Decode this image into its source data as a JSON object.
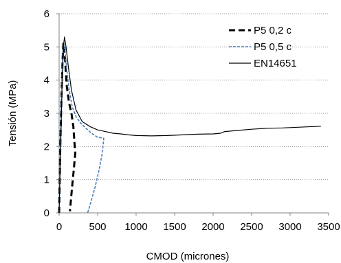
{
  "chart_data": {
    "type": "line",
    "title": "",
    "xlabel": "CMOD (micrones)",
    "ylabel": "Tensión (MPa)",
    "xlim": [
      0,
      3500
    ],
    "ylim": [
      0,
      6
    ],
    "xticks": [
      0,
      500,
      1000,
      1500,
      2000,
      2500,
      3000,
      3500
    ],
    "yticks": [
      0,
      1,
      2,
      3,
      4,
      5,
      6
    ],
    "grid": "horizontal-dotted",
    "legend_position": "top-right",
    "series": [
      {
        "name": "P5 0,2 c",
        "color": "#000000",
        "style": "dashed-bold",
        "points": [
          [
            0,
            0
          ],
          [
            15,
            2.0
          ],
          [
            30,
            3.5
          ],
          [
            45,
            4.6
          ],
          [
            55,
            5.1
          ],
          [
            65,
            5.1
          ],
          [
            80,
            4.5
          ],
          [
            100,
            3.8
          ],
          [
            130,
            3.3
          ],
          [
            160,
            3.0
          ],
          [
            185,
            2.6
          ],
          [
            200,
            2.1
          ],
          [
            210,
            1.8
          ],
          [
            190,
            1.3
          ],
          [
            165,
            0.7
          ],
          [
            140,
            0.05
          ]
        ]
      },
      {
        "name": "P5 0,5 c",
        "color": "#4a7ebb",
        "style": "dashed",
        "points": [
          [
            0,
            0
          ],
          [
            15,
            2.0
          ],
          [
            30,
            3.6
          ],
          [
            45,
            4.7
          ],
          [
            60,
            5.05
          ],
          [
            75,
            4.9
          ],
          [
            100,
            4.3
          ],
          [
            130,
            3.7
          ],
          [
            170,
            3.2
          ],
          [
            220,
            2.9
          ],
          [
            280,
            2.7
          ],
          [
            350,
            2.55
          ],
          [
            420,
            2.4
          ],
          [
            500,
            2.28
          ],
          [
            580,
            2.25
          ],
          [
            560,
            1.8
          ],
          [
            520,
            1.3
          ],
          [
            470,
            0.8
          ],
          [
            410,
            0.3
          ],
          [
            370,
            0.0
          ]
        ]
      },
      {
        "name": "EN14651",
        "color": "#000000",
        "style": "solid",
        "points": [
          [
            0,
            0
          ],
          [
            10,
            1.0
          ],
          [
            25,
            2.5
          ],
          [
            40,
            4.0
          ],
          [
            55,
            5.0
          ],
          [
            70,
            5.3
          ],
          [
            90,
            5.0
          ],
          [
            120,
            4.4
          ],
          [
            160,
            3.7
          ],
          [
            220,
            3.1
          ],
          [
            300,
            2.75
          ],
          [
            400,
            2.6
          ],
          [
            500,
            2.5
          ],
          [
            600,
            2.45
          ],
          [
            700,
            2.4
          ],
          [
            800,
            2.38
          ],
          [
            900,
            2.35
          ],
          [
            1000,
            2.33
          ],
          [
            1200,
            2.32
          ],
          [
            1400,
            2.33
          ],
          [
            1600,
            2.35
          ],
          [
            1800,
            2.37
          ],
          [
            2000,
            2.38
          ],
          [
            2100,
            2.4
          ],
          [
            2150,
            2.45
          ],
          [
            2300,
            2.48
          ],
          [
            2500,
            2.52
          ],
          [
            2700,
            2.55
          ],
          [
            2900,
            2.56
          ],
          [
            3100,
            2.58
          ],
          [
            3300,
            2.6
          ],
          [
            3400,
            2.61
          ]
        ]
      }
    ]
  }
}
